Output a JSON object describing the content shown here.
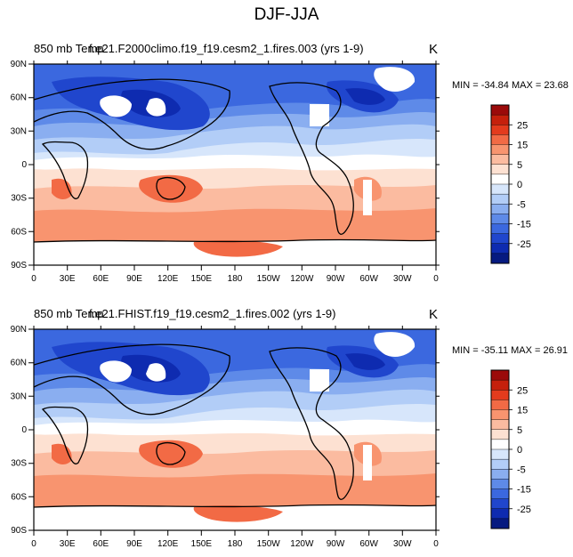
{
  "page": {
    "title": "DJF-JJA"
  },
  "chart_data": [
    {
      "type": "heatmap",
      "title_left": "850 mb Temp",
      "title_center": "f.e21.F2000climo.f19_f19.cesm2_1.fires.003 (yrs 1-9)",
      "units": "K",
      "stats": "MIN = -34.84  MAX =  23.68",
      "x_ticks": [
        "0",
        "30E",
        "60E",
        "90E",
        "120E",
        "150E",
        "180",
        "150W",
        "120W",
        "90W",
        "60W",
        "30W",
        "0"
      ],
      "y_ticks": [
        "90N",
        "60N",
        "30N",
        "0",
        "30S",
        "60S",
        "90S"
      ],
      "xlim": [
        0,
        360
      ],
      "ylim": [
        -90,
        90
      ],
      "colorbar": {
        "labels": [
          "25",
          "15",
          "5",
          "0",
          "-5",
          "-15",
          "-25"
        ],
        "colors": [
          "#9b0a0a",
          "#c5200c",
          "#e33b1d",
          "#f26a45",
          "#f8946f",
          "#fbbba0",
          "#fde1d2",
          "#ffffff",
          "#d7e6fb",
          "#b2cdf7",
          "#8aaef0",
          "#5e8ae8",
          "#3b68df",
          "#2046cd",
          "#0e2bb0",
          "#061a80"
        ]
      }
    },
    {
      "type": "heatmap",
      "title_left": "850 mb Temp",
      "title_center": "f.e21.FHIST.f19_f19.cesm2_1.fires.002 (yrs 1-9)",
      "units": "K",
      "stats": "MIN = -35.11  MAX =  26.91",
      "x_ticks": [
        "0",
        "30E",
        "60E",
        "90E",
        "120E",
        "150E",
        "180",
        "150W",
        "120W",
        "90W",
        "60W",
        "30W",
        "0"
      ],
      "y_ticks": [
        "90N",
        "60N",
        "30N",
        "0",
        "30S",
        "60S",
        "90S"
      ],
      "xlim": [
        0,
        360
      ],
      "ylim": [
        -90,
        90
      ],
      "colorbar": {
        "labels": [
          "25",
          "15",
          "5",
          "0",
          "-5",
          "-15",
          "-25"
        ],
        "colors": [
          "#9b0a0a",
          "#c5200c",
          "#e33b1d",
          "#f26a45",
          "#f8946f",
          "#fbbba0",
          "#fde1d2",
          "#ffffff",
          "#d7e6fb",
          "#b2cdf7",
          "#8aaef0",
          "#5e8ae8",
          "#3b68df",
          "#2046cd",
          "#0e2bb0",
          "#061a80"
        ]
      }
    }
  ]
}
